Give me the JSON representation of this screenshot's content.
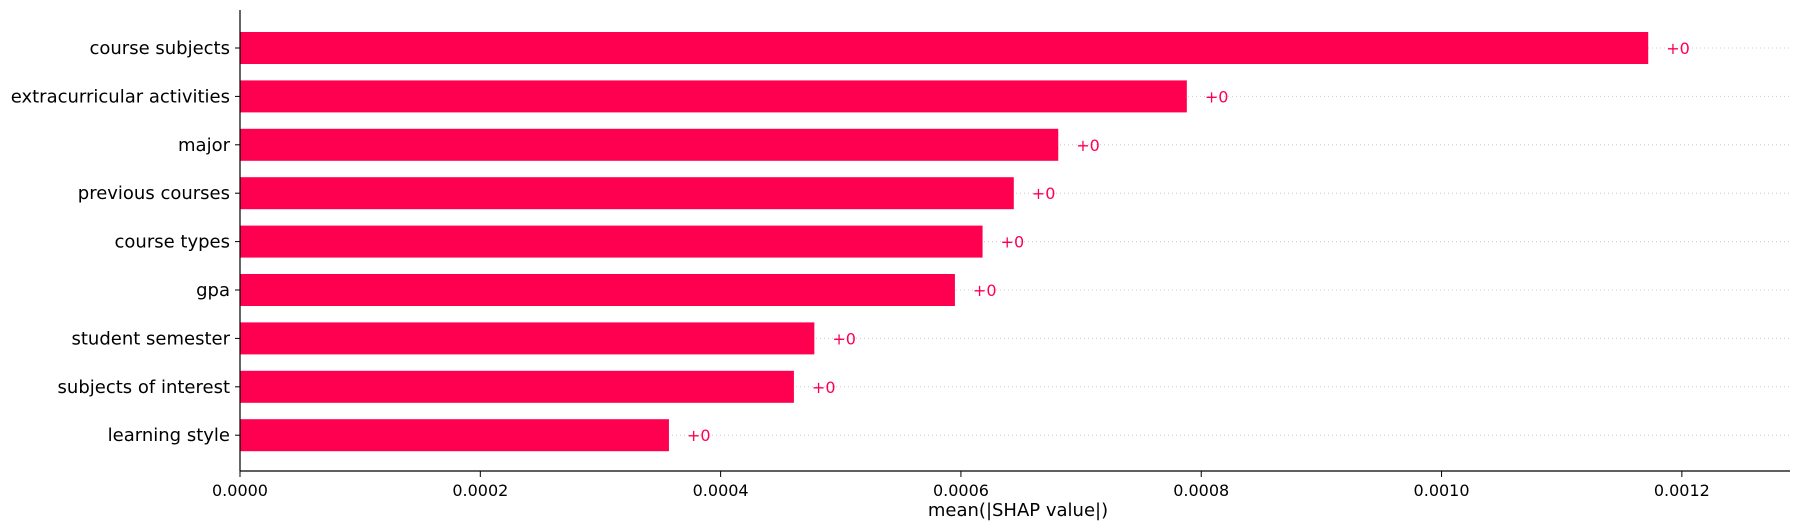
{
  "chart_data": {
    "type": "bar",
    "orientation": "horizontal",
    "categories": [
      "course subjects",
      "extracurricular activities",
      "major",
      "previous courses",
      "course types",
      "gpa",
      "student semester",
      "subjects of interest",
      "learning style"
    ],
    "values": [
      0.001172,
      0.000788,
      0.000681,
      0.000644,
      0.000618,
      0.000595,
      0.000478,
      0.000461,
      0.000357
    ],
    "value_labels": [
      "+0",
      "+0",
      "+0",
      "+0",
      "+0",
      "+0",
      "+0",
      "+0",
      "+0"
    ],
    "xlabel": "mean(|SHAP value|)",
    "ylabel": "",
    "xlim": [
      0,
      0.00129
    ],
    "xticks": [
      0.0,
      0.0002,
      0.0004,
      0.0006,
      0.0008,
      0.001,
      0.0012
    ],
    "xtick_labels": [
      "0.0000",
      "0.0002",
      "0.0004",
      "0.0006",
      "0.0008",
      "0.0010",
      "0.0012"
    ],
    "grid": "dotted-row-guides",
    "colors": {
      "bar": "#ff0051",
      "value_label": "#ff0051",
      "axis": "#000000",
      "guide": "#cccccc"
    }
  }
}
